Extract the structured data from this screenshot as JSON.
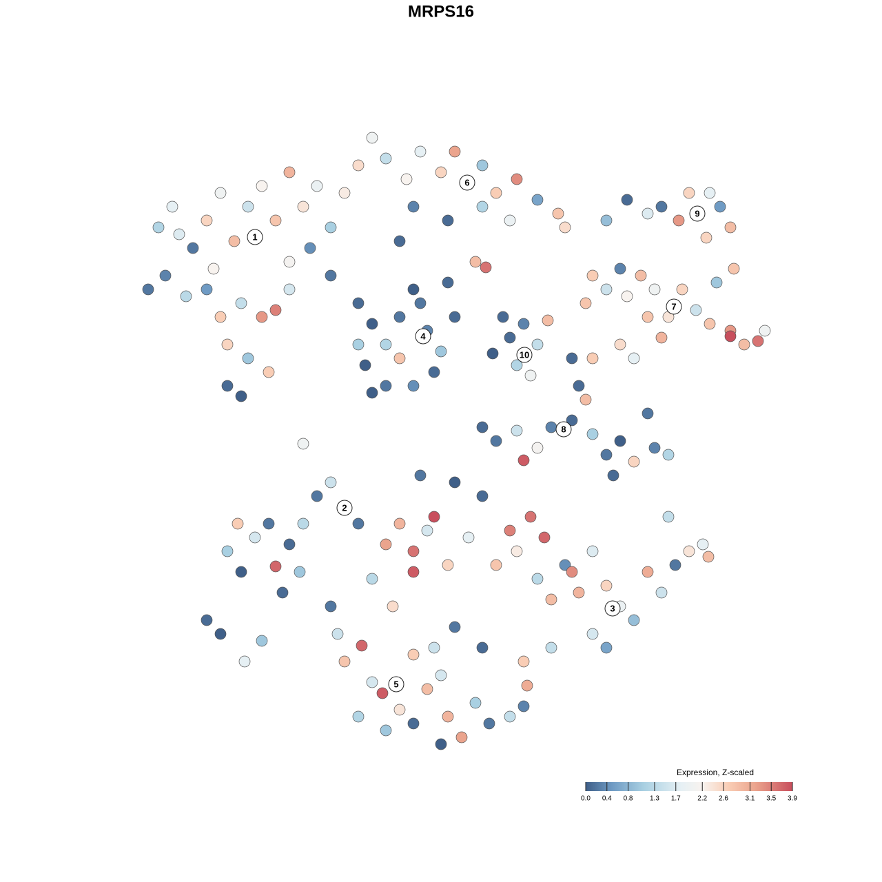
{
  "chart_data": {
    "type": "scatter",
    "title": "MRPS16",
    "xlim": [
      0,
      1280
    ],
    "ylim": [
      1280,
      0
    ],
    "x": [
      230,
      250,
      280,
      300,
      320,
      340,
      360,
      380,
      400,
      420,
      440,
      460,
      480,
      500,
      520,
      540,
      300,
      320,
      350,
      380,
      400,
      330,
      360,
      390,
      330,
      350,
      240,
      215,
      270,
      420,
      450,
      480,
      310,
      420,
      260,
      560,
      590,
      610,
      640,
      660,
      700,
      720,
      750,
      780,
      810,
      820,
      600,
      650,
      700,
      740,
      690,
      705,
      580,
      520,
      540,
      560,
      580,
      600,
      620,
      640,
      660,
      530,
      560,
      600,
      630,
      520,
      580,
      610,
      540,
      650,
      880,
      910,
      940,
      960,
      985,
      1000,
      1030,
      1060,
      1065,
      1040,
      1025,
      1045,
      860,
      880,
      900,
      910,
      930,
      950,
      970,
      990,
      1010,
      1030,
      1060,
      1080,
      1100,
      1110,
      1060,
      940,
      960,
      900,
      860,
      920,
      850,
      740,
      760,
      780,
      750,
      770,
      795,
      730,
      715,
      700,
      720,
      750,
      780,
      760,
      800,
      830,
      860,
      880,
      900,
      920,
      950,
      970,
      890,
      940,
      840,
      850,
      830,
      330,
      350,
      370,
      390,
      400,
      420,
      440,
      460,
      480,
      500,
      520,
      345,
      410,
      435,
      300,
      355,
      380,
      320,
      440,
      720,
      750,
      780,
      800,
      820,
      840,
      860,
      880,
      900,
      920,
      940,
      960,
      980,
      1000,
      1020,
      1028,
      860,
      880,
      800,
      760,
      830,
      790,
      770,
      740,
      970,
      580,
      600,
      620,
      630,
      560,
      650,
      680,
      700,
      660,
      610,
      540,
      570,
      600,
      490,
      500,
      525,
      540,
      555,
      580,
      600,
      620,
      640,
      650,
      670,
      690,
      710,
      740,
      760,
      560,
      520,
      600,
      630,
      660,
      700,
      640,
      765,
      480
    ],
    "y": [
      330,
      300,
      360,
      320,
      280,
      350,
      300,
      270,
      320,
      250,
      300,
      270,
      330,
      280,
      240,
      200,
      420,
      460,
      440,
      460,
      450,
      500,
      520,
      540,
      560,
      575,
      400,
      420,
      430,
      380,
      360,
      400,
      390,
      420,
      340,
      230,
      260,
      220,
      250,
      220,
      240,
      280,
      260,
      290,
      310,
      330,
      300,
      320,
      300,
      320,
      380,
      388,
      350,
      440,
      470,
      500,
      460,
      420,
      480,
      510,
      460,
      530,
      560,
      560,
      540,
      500,
      520,
      440,
      570,
      410,
      320,
      290,
      310,
      300,
      320,
      280,
      280,
      330,
      390,
      410,
      345,
      300,
      400,
      420,
      390,
      430,
      400,
      420,
      460,
      420,
      450,
      470,
      480,
      500,
      495,
      480,
      488,
      460,
      490,
      500,
      520,
      520,
      440,
      490,
      470,
      500,
      530,
      545,
      465,
      460,
      513,
      620,
      640,
      625,
      650,
      668,
      620,
      610,
      630,
      660,
      640,
      670,
      650,
      660,
      690,
      600,
      560,
      580,
      520,
      800,
      830,
      780,
      760,
      822,
      790,
      760,
      720,
      700,
      740,
      760,
      760,
      860,
      830,
      900,
      960,
      930,
      920,
      644,
      820,
      800,
      840,
      870,
      820,
      860,
      800,
      850,
      880,
      900,
      830,
      860,
      820,
      800,
      790,
      808,
      920,
      940,
      940,
      960,
      830,
      780,
      750,
      770,
      750,
      760,
      800,
      770,
      750,
      790,
      820,
      780,
      720,
      700,
      690,
      840,
      880,
      830,
      920,
      960,
      937,
      990,
      1006,
      1030,
      1050,
      1000,
      980,
      1040,
      1070,
      1020,
      1050,
      1040,
      1025,
      1060,
      1040,
      950,
      940,
      910,
      940,
      1080,
      995,
      880
    ],
    "values": [
      1.2,
      1.8,
      0.2,
      2.6,
      2.0,
      2.9,
      1.5,
      2.2,
      2.8,
      3.0,
      2.4,
      1.9,
      1.1,
      2.3,
      2.5,
      2.0,
      0.5,
      2.7,
      1.4,
      3.3,
      3.5,
      2.6,
      1.0,
      2.7,
      0.1,
      0.0,
      0.3,
      0.2,
      1.3,
      2.1,
      0.4,
      0.2,
      2.2,
      1.6,
      1.7,
      1.4,
      2.2,
      1.8,
      2.6,
      3.2,
      1.0,
      2.7,
      3.4,
      0.6,
      2.8,
      2.5,
      0.3,
      0.1,
      1.2,
      1.9,
      2.9,
      3.6,
      0.1,
      0.1,
      0.0,
      1.2,
      0.2,
      0.0,
      0.3,
      1.0,
      0.1,
      0.0,
      0.2,
      0.4,
      0.1,
      1.1,
      2.8,
      0.2,
      0.0,
      0.1,
      0.9,
      0.1,
      1.7,
      0.2,
      3.3,
      2.6,
      1.8,
      2.9,
      2.8,
      1.0,
      2.6,
      0.5,
      2.7,
      1.5,
      0.3,
      2.2,
      2.9,
      2.0,
      2.4,
      2.6,
      1.5,
      2.8,
      3.3,
      2.9,
      3.6,
      2.0,
      3.9,
      2.8,
      3.0,
      2.5,
      2.7,
      1.8,
      2.8,
      0.1,
      0.3,
      1.4,
      1.2,
      2.0,
      2.9,
      0.1,
      0.0,
      0.1,
      0.2,
      1.5,
      2.1,
      3.8,
      0.3,
      0.1,
      1.1,
      0.2,
      0.0,
      2.6,
      0.3,
      1.2,
      0.1,
      0.2,
      0.1,
      2.9,
      0.1,
      1.1,
      0.0,
      1.6,
      0.2,
      3.7,
      0.1,
      1.3,
      0.2,
      1.5,
      0.1,
      0.2,
      2.7,
      0.1,
      1.0,
      0.1,
      1.8,
      1.0,
      0.0,
      2.0,
      2.8,
      2.3,
      1.3,
      2.9,
      0.4,
      3.0,
      1.7,
      2.6,
      1.9,
      0.9,
      3.1,
      1.5,
      0.2,
      2.4,
      1.8,
      2.9,
      1.6,
      0.6,
      1.4,
      2.7,
      3.4,
      3.7,
      3.6,
      3.5,
      1.4,
      3.0,
      3.6,
      1.6,
      3.9,
      3.2,
      2.6,
      1.8,
      0.1,
      0.0,
      0.2,
      1.3,
      2.5,
      3.8,
      1.5,
      2.8,
      3.7,
      1.6,
      3.8,
      2.4,
      0.1,
      2.9,
      1.6,
      3.0,
      3.2,
      1.1,
      0.2,
      1.4,
      0.3,
      1.0,
      1.2,
      2.7,
      1.5,
      0.2,
      0.1,
      0.0,
      3.1,
      0.2
    ],
    "annotations": [
      {
        "text": "1",
        "x": 370,
        "y": 344
      },
      {
        "text": "2",
        "x": 500,
        "y": 737
      },
      {
        "text": "3",
        "x": 889,
        "y": 883
      },
      {
        "text": "4",
        "x": 614,
        "y": 488
      },
      {
        "text": "5",
        "x": 575,
        "y": 993
      },
      {
        "text": "6",
        "x": 678,
        "y": 265
      },
      {
        "text": "7",
        "x": 978,
        "y": 445
      },
      {
        "text": "8",
        "x": 818,
        "y": 623
      },
      {
        "text": "9",
        "x": 1012,
        "y": 310
      },
      {
        "text": "10",
        "x": 761,
        "y": 515
      }
    ],
    "colorbar": {
      "title": "Expression, Z-scaled",
      "lim": [
        0,
        3.9
      ],
      "ticks": [
        {
          "value": 0,
          "label": "0.0"
        },
        0.4,
        0.8,
        1.3,
        1.7,
        2.2,
        2.6,
        3.1,
        3.5,
        3.9
      ],
      "colorscale": [
        [
          0,
          "#3f5f88"
        ],
        [
          0.5,
          "#6f9bc4"
        ],
        [
          1.1,
          "#a9d0e2"
        ],
        [
          1.8,
          "#e6f0f4"
        ],
        [
          2.2,
          "#f8f3ef"
        ],
        [
          2.7,
          "#f9cdb5"
        ],
        [
          3.2,
          "#eba48d"
        ],
        [
          3.9,
          "#c84f5d"
        ]
      ]
    }
  }
}
